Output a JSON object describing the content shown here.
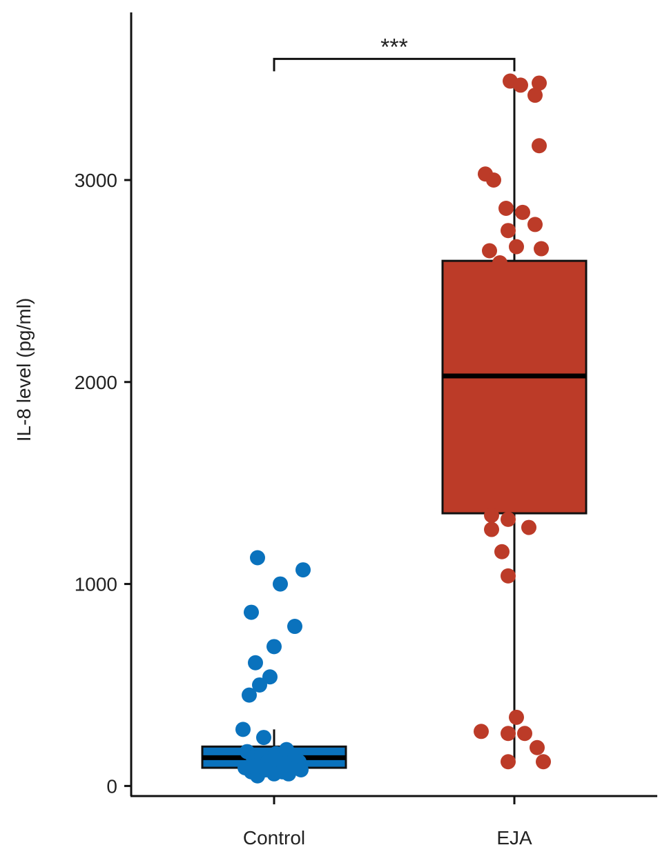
{
  "chart_data": {
    "type": "box",
    "title": "",
    "xlabel": "",
    "ylabel": "IL-8 level (pg/ml)",
    "ylim": [
      -50,
      3830
    ],
    "yticks": [
      0,
      1000,
      2000,
      3000
    ],
    "categories": [
      "Control",
      "EJA"
    ],
    "significance": {
      "between": [
        "Control",
        "EJA"
      ],
      "label": "***",
      "y": 3600
    },
    "grid": false,
    "legend": "none",
    "groups": [
      {
        "category": "Control",
        "color": "#0a72bd",
        "box": {
          "q1": 90,
          "median": 140,
          "q3": 195,
          "whisker_low": 40,
          "whisker_high": 280
        },
        "points": [
          [
            -0.08,
            1130
          ],
          [
            0.03,
            1000
          ],
          [
            0.14,
            1070
          ],
          [
            -0.11,
            860
          ],
          [
            0.1,
            790
          ],
          [
            0.0,
            690
          ],
          [
            -0.09,
            610
          ],
          [
            -0.02,
            540
          ],
          [
            -0.07,
            500
          ],
          [
            -0.12,
            450
          ],
          [
            -0.15,
            280
          ],
          [
            -0.05,
            240
          ],
          [
            -0.13,
            170
          ],
          [
            -0.1,
            140
          ],
          [
            -0.06,
            150
          ],
          [
            -0.03,
            120
          ],
          [
            -0.01,
            110
          ],
          [
            0.01,
            160
          ],
          [
            0.03,
            130
          ],
          [
            0.06,
            180
          ],
          [
            0.08,
            100
          ],
          [
            0.1,
            150
          ],
          [
            0.12,
            120
          ],
          [
            -0.14,
            90
          ],
          [
            -0.11,
            70
          ],
          [
            -0.08,
            50
          ],
          [
            -0.04,
            80
          ],
          [
            0.0,
            60
          ],
          [
            0.04,
            70
          ],
          [
            0.07,
            60
          ],
          [
            0.11,
            90
          ],
          [
            0.13,
            80
          ],
          [
            -0.09,
            100
          ],
          [
            0.05,
            110
          ]
        ]
      },
      {
        "category": "EJA",
        "color": "#bc3b28",
        "box": {
          "q1": 1350,
          "median": 2030,
          "q3": 2600,
          "whisker_low": 120,
          "whisker_high": 3490
        },
        "points": [
          [
            -0.02,
            3490
          ],
          [
            0.03,
            3470
          ],
          [
            0.12,
            3480
          ],
          [
            0.1,
            3420
          ],
          [
            0.12,
            3170
          ],
          [
            -0.14,
            3030
          ],
          [
            -0.1,
            3000
          ],
          [
            -0.04,
            2860
          ],
          [
            0.04,
            2840
          ],
          [
            -0.03,
            2750
          ],
          [
            0.1,
            2780
          ],
          [
            -0.12,
            2650
          ],
          [
            0.01,
            2670
          ],
          [
            0.13,
            2660
          ],
          [
            -0.07,
            2590
          ],
          [
            -0.11,
            1340
          ],
          [
            -0.03,
            1320
          ],
          [
            -0.11,
            1270
          ],
          [
            0.07,
            1280
          ],
          [
            -0.06,
            1160
          ],
          [
            -0.03,
            1040
          ],
          [
            0.01,
            340
          ],
          [
            -0.16,
            270
          ],
          [
            -0.03,
            260
          ],
          [
            0.05,
            260
          ],
          [
            0.11,
            190
          ],
          [
            -0.03,
            120
          ],
          [
            0.14,
            120
          ]
        ]
      }
    ]
  }
}
